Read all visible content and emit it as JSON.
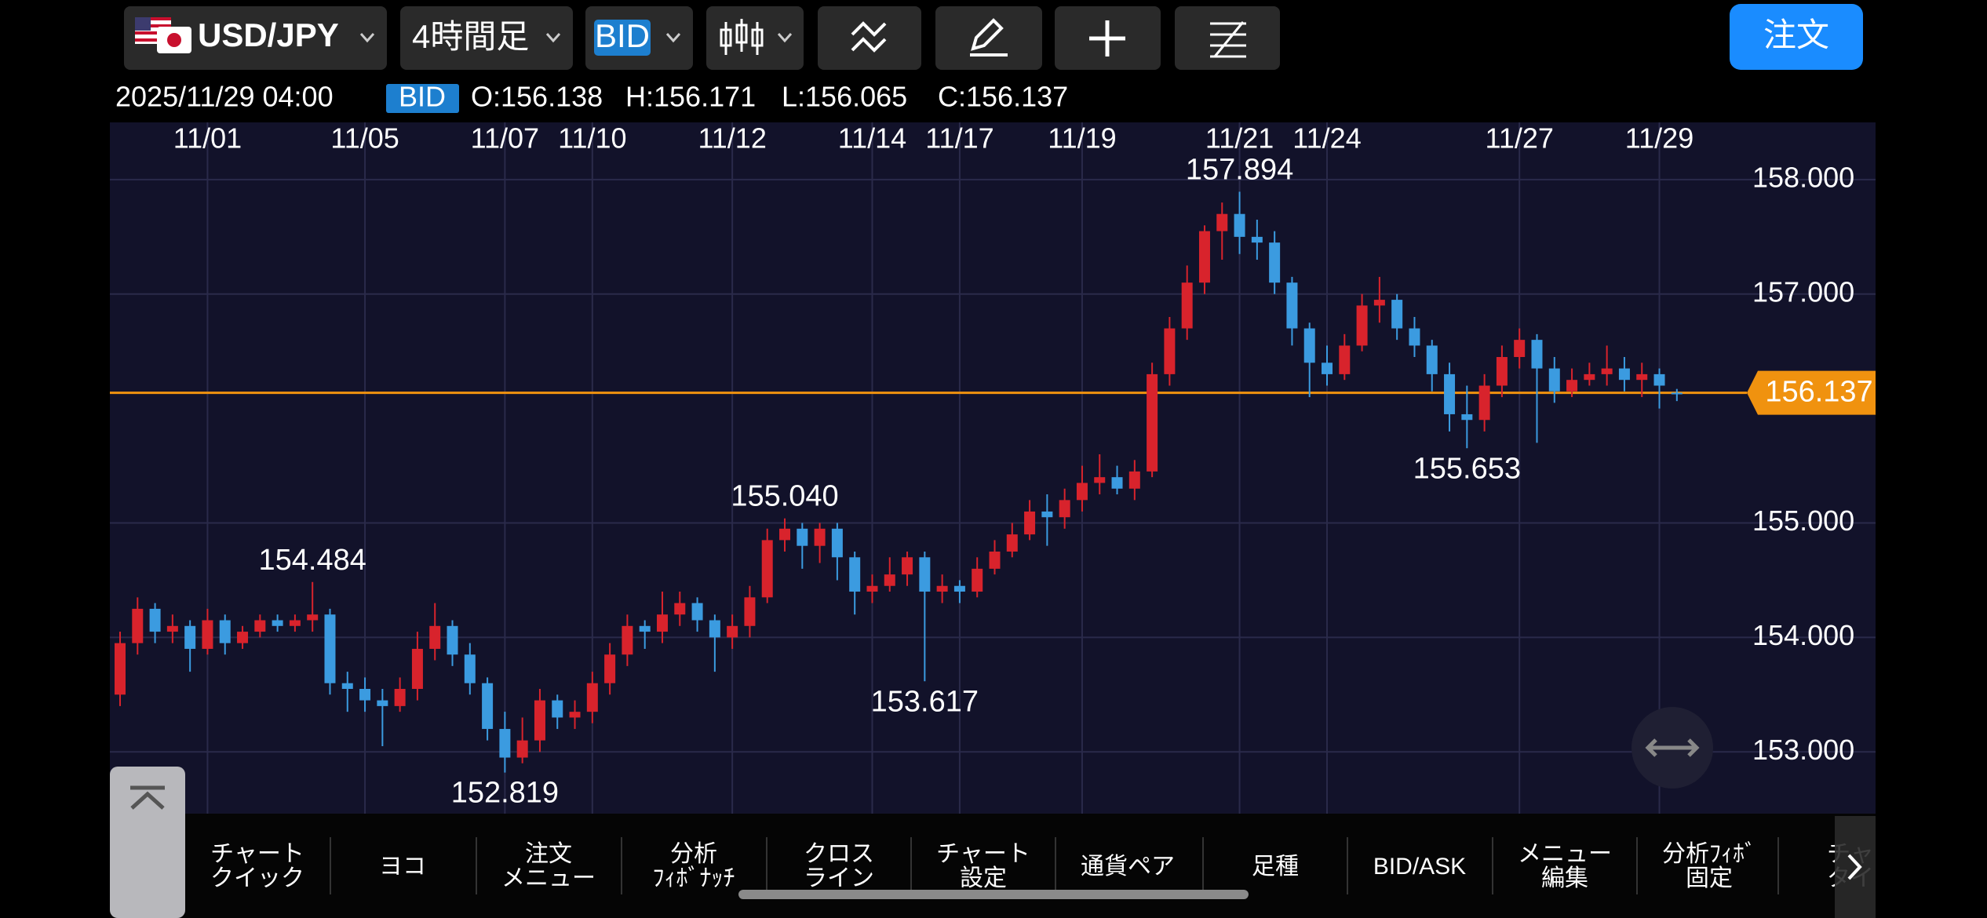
{
  "toolbar": {
    "pair": "USD/JPY",
    "timeframe": "4時間足",
    "price_type": "BID",
    "order_button": "注文"
  },
  "header": {
    "datetime": "2025/11/29 04:00",
    "price_type": "BID",
    "ohlc": [
      "O:156.138",
      "H:156.171",
      "L:156.065",
      "C:156.137"
    ]
  },
  "chart_data": {
    "type": "candlestick",
    "categories": [
      null,
      null,
      null,
      null,
      null,
      "11/01",
      null,
      null,
      null,
      null,
      null,
      null,
      null,
      null,
      "11/05",
      null,
      null,
      null,
      null,
      null,
      null,
      null,
      "11/07",
      null,
      null,
      null,
      null,
      "11/10",
      null,
      null,
      null,
      null,
      null,
      null,
      null,
      "11/12",
      null,
      null,
      null,
      null,
      null,
      null,
      null,
      "11/14",
      null,
      null,
      null,
      null,
      "11/17",
      null,
      null,
      null,
      null,
      null,
      null,
      "11/19",
      null,
      null,
      null,
      null,
      null,
      null,
      null,
      null,
      "11/21",
      null,
      null,
      null,
      null,
      "11/24",
      null,
      null,
      null,
      null,
      null,
      null,
      null,
      null,
      null,
      null,
      "11/27",
      null,
      null,
      null,
      null,
      null,
      null,
      null,
      "11/29",
      null
    ],
    "open": [
      153.5,
      153.95,
      154.25,
      154.05,
      154.1,
      153.9,
      154.15,
      153.95,
      154.05,
      154.15,
      154.1,
      154.15,
      154.2,
      153.6,
      153.55,
      153.45,
      153.4,
      153.55,
      153.9,
      154.1,
      153.85,
      153.6,
      153.2,
      152.95,
      153.1,
      153.45,
      153.3,
      153.35,
      153.6,
      153.85,
      154.1,
      154.05,
      154.2,
      154.3,
      154.15,
      154.0,
      154.1,
      154.35,
      154.85,
      154.95,
      154.8,
      154.95,
      154.7,
      154.4,
      154.45,
      154.55,
      154.7,
      154.4,
      154.45,
      154.4,
      154.6,
      154.75,
      154.9,
      155.1,
      155.05,
      155.2,
      155.35,
      155.4,
      155.3,
      155.45,
      156.3,
      156.7,
      157.1,
      157.55,
      157.7,
      157.5,
      157.45,
      157.1,
      156.7,
      156.4,
      156.3,
      156.55,
      156.9,
      156.95,
      156.7,
      156.55,
      156.3,
      155.95,
      155.9,
      156.2,
      156.45,
      156.6,
      156.35,
      156.15,
      156.25,
      156.3,
      156.35,
      156.25,
      156.3,
      156.138
    ],
    "high": [
      154.05,
      154.35,
      154.3,
      154.2,
      154.15,
      154.25,
      154.2,
      154.1,
      154.2,
      154.2,
      154.2,
      154.484,
      154.25,
      153.7,
      153.65,
      153.55,
      153.65,
      154.05,
      154.3,
      154.15,
      153.95,
      153.65,
      153.35,
      153.3,
      153.55,
      153.5,
      153.45,
      153.7,
      153.95,
      154.2,
      154.15,
      154.4,
      154.4,
      154.35,
      154.2,
      154.2,
      154.45,
      154.95,
      155.04,
      155.0,
      155.0,
      155.0,
      154.75,
      154.55,
      154.7,
      154.75,
      154.75,
      154.55,
      154.5,
      154.7,
      154.85,
      155.0,
      155.2,
      155.25,
      155.3,
      155.5,
      155.6,
      155.5,
      155.55,
      156.4,
      156.8,
      157.25,
      157.6,
      157.8,
      157.894,
      157.65,
      157.55,
      157.15,
      156.75,
      156.55,
      156.65,
      157.0,
      157.15,
      157.0,
      156.8,
      156.6,
      156.4,
      156.2,
      156.3,
      156.55,
      156.7,
      156.65,
      156.45,
      156.35,
      156.4,
      156.55,
      156.45,
      156.4,
      156.35,
      156.171
    ],
    "low": [
      153.4,
      153.85,
      153.95,
      153.95,
      153.7,
      153.85,
      153.85,
      153.9,
      154.0,
      154.05,
      154.05,
      154.05,
      153.5,
      153.35,
      153.35,
      153.05,
      153.35,
      153.45,
      153.8,
      153.75,
      153.5,
      153.1,
      152.819,
      152.9,
      153.0,
      153.2,
      153.2,
      153.25,
      153.5,
      153.75,
      153.9,
      153.95,
      154.1,
      154.05,
      153.7,
      153.9,
      154.0,
      154.3,
      154.75,
      154.6,
      154.65,
      154.5,
      154.2,
      154.3,
      154.4,
      154.45,
      153.617,
      154.3,
      154.3,
      154.35,
      154.55,
      154.7,
      154.85,
      154.8,
      154.95,
      155.1,
      155.25,
      155.25,
      155.2,
      155.4,
      156.2,
      156.6,
      157.0,
      157.3,
      157.35,
      157.3,
      157.0,
      156.55,
      156.1,
      156.2,
      156.25,
      156.5,
      156.75,
      156.6,
      156.45,
      156.15,
      155.8,
      155.653,
      155.8,
      156.1,
      156.35,
      155.7,
      156.05,
      156.1,
      156.2,
      156.2,
      156.15,
      156.1,
      156.0,
      156.065
    ],
    "close": [
      153.95,
      154.25,
      154.05,
      154.1,
      153.9,
      154.15,
      153.95,
      154.05,
      154.15,
      154.1,
      154.15,
      154.2,
      153.6,
      153.55,
      153.45,
      153.4,
      153.55,
      153.9,
      154.1,
      153.85,
      153.6,
      153.2,
      152.95,
      153.1,
      153.45,
      153.3,
      153.35,
      153.6,
      153.85,
      154.1,
      154.05,
      154.2,
      154.3,
      154.15,
      154.0,
      154.1,
      154.35,
      154.85,
      154.95,
      154.8,
      154.95,
      154.7,
      154.4,
      154.45,
      154.55,
      154.7,
      154.4,
      154.45,
      154.4,
      154.6,
      154.75,
      154.9,
      155.1,
      155.05,
      155.2,
      155.35,
      155.4,
      155.3,
      155.45,
      156.3,
      156.7,
      157.1,
      157.55,
      157.7,
      157.5,
      157.45,
      157.1,
      156.7,
      156.4,
      156.3,
      156.55,
      156.9,
      156.95,
      156.7,
      156.55,
      156.3,
      155.95,
      155.9,
      156.2,
      156.45,
      156.6,
      156.35,
      156.15,
      156.25,
      156.3,
      156.35,
      156.25,
      156.3,
      156.2,
      156.137
    ],
    "up_color": "#d8232c",
    "down_color": "#3b9be0",
    "ylim": [
      152.46,
      158.5
    ],
    "yticks": [
      {
        "value": 153,
        "label": "153.000"
      },
      {
        "value": 154,
        "label": "154.000"
      },
      {
        "value": 155,
        "label": "155.000"
      },
      {
        "value": 157,
        "label": "157.000"
      },
      {
        "value": 158,
        "label": "158.000"
      }
    ],
    "grid": true,
    "current_price": 156.137,
    "current_price_color": "#f0920f",
    "high_marks": [
      {
        "value": 154.484,
        "label": "154.484"
      },
      {
        "value": 155.04,
        "label": "155.040"
      },
      {
        "value": 157.894,
        "label": "157.894"
      }
    ],
    "low_marks": [
      {
        "value": 152.819,
        "label": "152.819"
      },
      {
        "value": 153.617,
        "label": "153.617"
      },
      {
        "value": 155.653,
        "label": "155.653"
      }
    ],
    "high_color": "#f08a1c",
    "low_color": "#22b33a"
  },
  "menu": {
    "items": [
      [
        "チャート",
        "クイック"
      ],
      [
        "ヨコ"
      ],
      [
        "注文",
        "メニュー"
      ],
      [
        "分析",
        "ﾌｨﾎﾞﾅｯﾁ"
      ],
      [
        "クロス",
        "ライン"
      ],
      [
        "チャート",
        "設定"
      ],
      [
        "通貨ペア"
      ],
      [
        "足種"
      ],
      [
        "BID/ASK"
      ],
      [
        "メニュー",
        "編集"
      ],
      [
        "分析ﾌｨﾎﾞ",
        "固定"
      ],
      [
        "チャ",
        "タイ"
      ]
    ]
  }
}
